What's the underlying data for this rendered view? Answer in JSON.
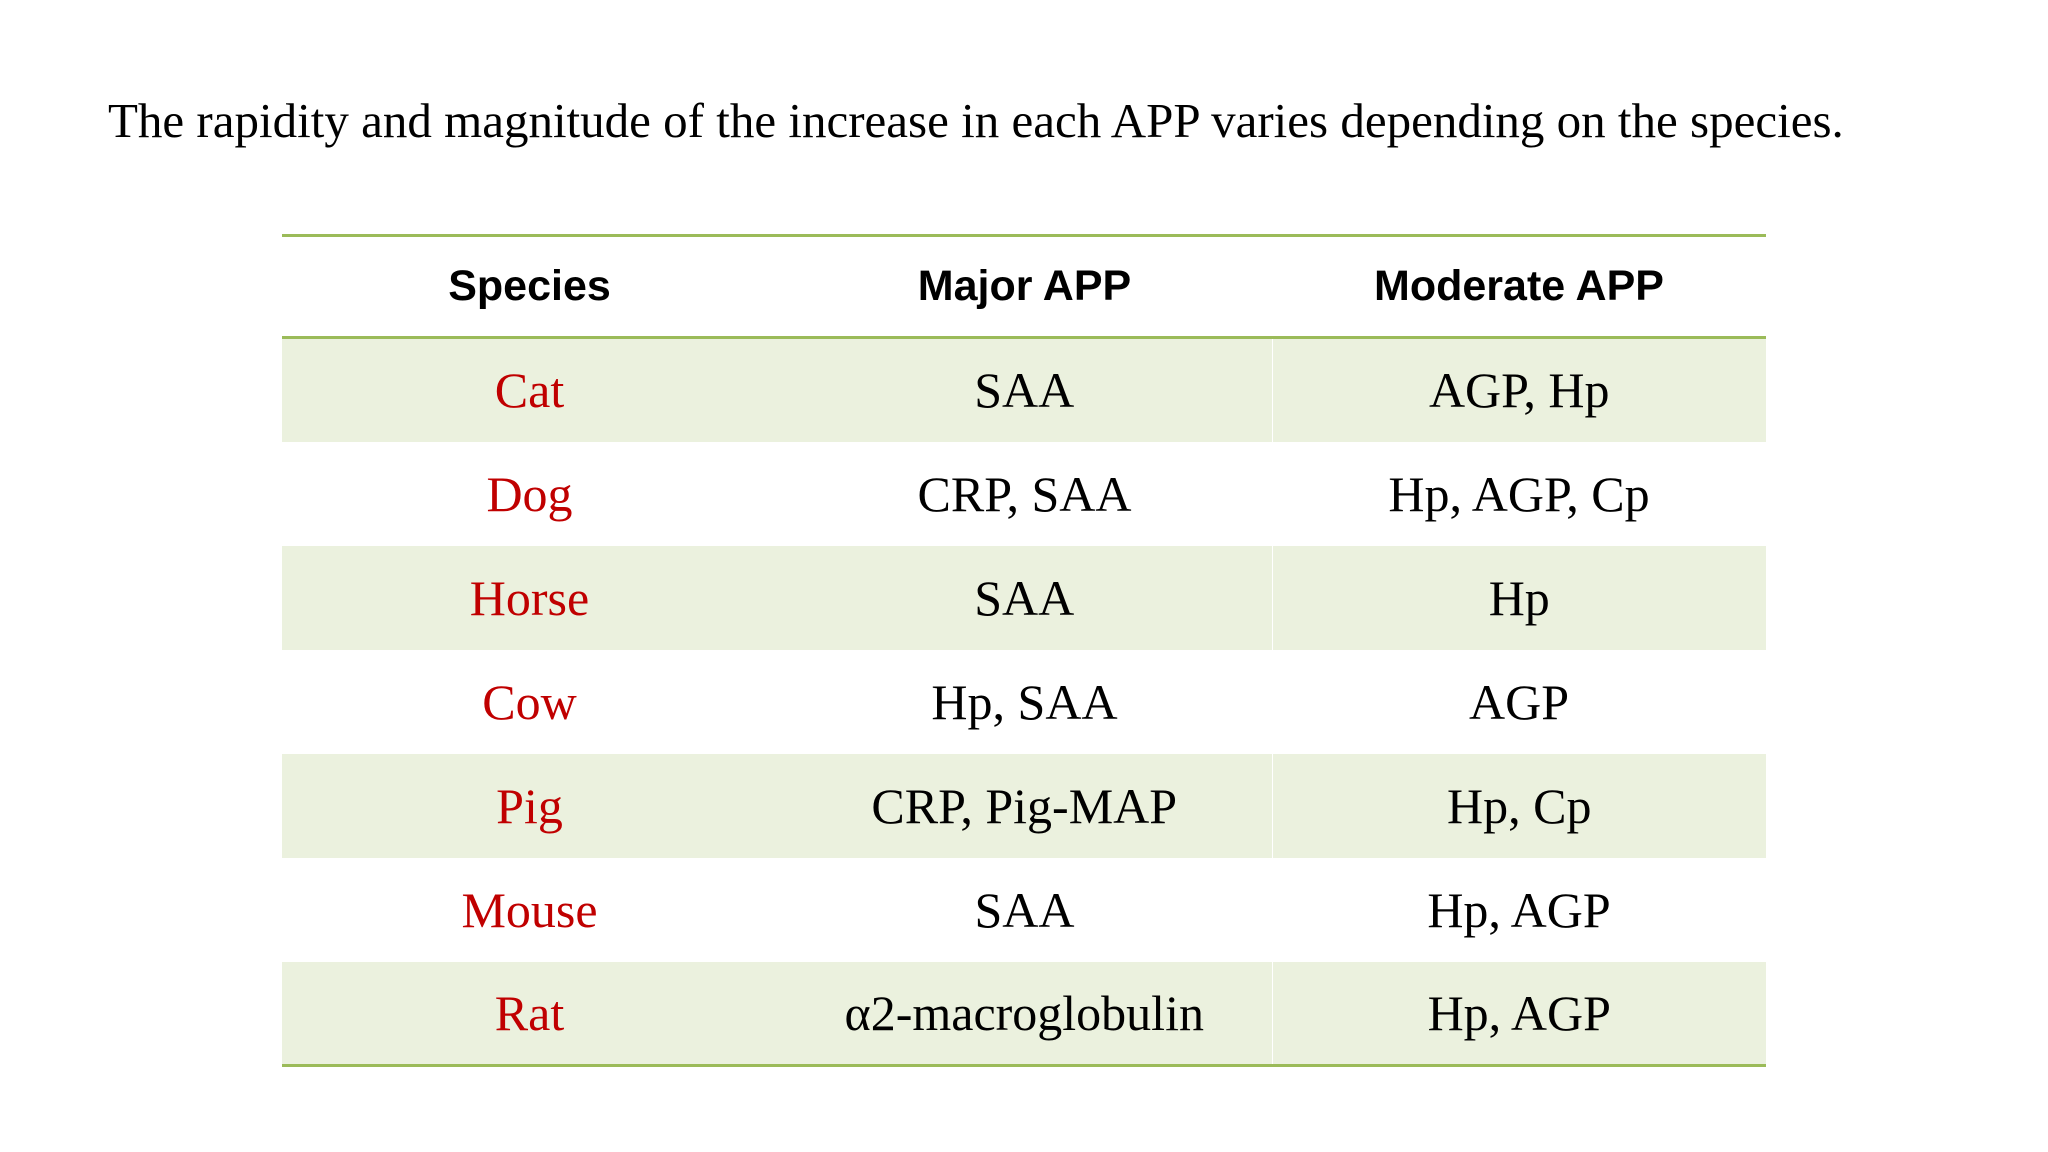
{
  "intro_text": "The rapidity and magnitude of the increase in each APP varies depending on the species.",
  "colors": {
    "species_text": "#c00000",
    "rule_line": "#9bbb59",
    "band_fill": "#ebf1de"
  },
  "table": {
    "headers": [
      "Species",
      "Major APP",
      "Moderate APP"
    ],
    "rows": [
      {
        "species": "Cat",
        "major": "SAA",
        "moderate": "AGP, Hp"
      },
      {
        "species": "Dog",
        "major": "CRP, SAA",
        "moderate": "Hp, AGP, Cp"
      },
      {
        "species": "Horse",
        "major": "SAA",
        "moderate": "Hp"
      },
      {
        "species": "Cow",
        "major": "Hp, SAA",
        "moderate": "AGP"
      },
      {
        "species": "Pig",
        "major": "CRP, Pig-MAP",
        "moderate": "Hp, Cp"
      },
      {
        "species": "Mouse",
        "major": "SAA",
        "moderate": "Hp, AGP"
      },
      {
        "species": "Rat",
        "major": "α2-macroglobulin",
        "moderate": "Hp, AGP"
      }
    ]
  }
}
